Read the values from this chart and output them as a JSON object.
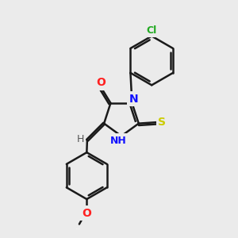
{
  "bg_color": "#ebebeb",
  "bond_color": "#1a1a1a",
  "bond_width": 1.8,
  "atom_labels": {
    "O": {
      "color": "#ff2020",
      "fontsize": 10,
      "fontweight": "bold"
    },
    "N": {
      "color": "#1010ff",
      "fontsize": 10,
      "fontweight": "bold"
    },
    "S": {
      "color": "#cccc00",
      "fontsize": 10,
      "fontweight": "bold"
    },
    "Cl": {
      "color": "#22aa22",
      "fontsize": 9,
      "fontweight": "bold"
    },
    "H": {
      "color": "#555555",
      "fontsize": 9,
      "fontweight": "normal"
    },
    "NH": {
      "color": "#1010ff",
      "fontsize": 9,
      "fontweight": "bold"
    }
  }
}
